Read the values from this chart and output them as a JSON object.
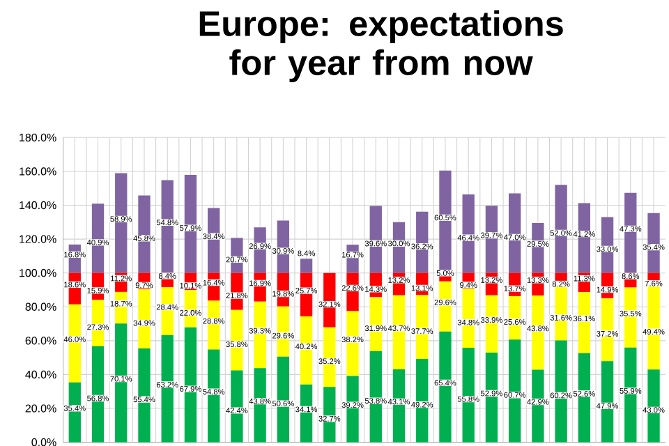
{
  "chart_data": {
    "type": "bar",
    "stacked": true,
    "title": "Europe: expectations for year from now",
    "categories": [
      null,
      null,
      null,
      null,
      null,
      null,
      null,
      null,
      null,
      null,
      null,
      null,
      null,
      null,
      null,
      null,
      null,
      null,
      null,
      null,
      null,
      null,
      null,
      null,
      null,
      null
    ],
    "series": [
      {
        "color": "#00b050",
        "values": [
          35.4,
          56.8,
          70.1,
          55.4,
          63.2,
          67.9,
          54.8,
          42.4,
          43.8,
          50.6,
          34.1,
          32.7,
          39.2,
          53.8,
          43.1,
          49.2,
          65.4,
          55.8,
          52.9,
          60.7,
          42.9,
          60.2,
          52.6,
          47.9,
          55.9,
          43.0
        ],
        "value_labels": [
          "35.4%",
          "56.8%",
          "70.1%",
          "55.4%",
          "63.2%",
          "67.9%",
          "54.8%",
          "42.4%",
          "43.8%",
          "50.6%",
          "34.1%",
          "32.7%",
          "39.2%",
          "53.8%",
          "43.1%",
          "49.2%",
          "65.4%",
          "55.8%",
          "52.9%",
          "60.7%",
          "42.9%",
          "60.2%",
          "52.6%",
          "47.9%",
          "55.9%",
          "43.0%"
        ]
      },
      {
        "color": "#ffff00",
        "values": [
          46.0,
          27.3,
          18.7,
          34.9,
          28.4,
          22.0,
          28.8,
          35.8,
          39.3,
          29.6,
          40.2,
          35.2,
          38.2,
          31.9,
          43.7,
          37.7,
          29.6,
          34.8,
          33.9,
          25.6,
          43.8,
          31.6,
          36.1,
          37.2,
          35.5,
          49.4
        ],
        "value_labels": [
          "46.0%",
          "27.3%",
          "18.7%",
          "34.9%",
          "28.4%",
          "22.0%",
          "28.8%",
          "35.8%",
          "39.3%",
          "29.6%",
          "40.2%",
          "35.2%",
          "38.2%",
          "31.9%",
          "43.7%",
          "37.7%",
          "29.6%",
          "34.8%",
          "33.9%",
          "25.6%",
          "43.8%",
          "31.6%",
          "36.1%",
          "37.2%",
          "35.5%",
          "49.4%"
        ]
      },
      {
        "color": "#ff0000",
        "values": [
          18.6,
          15.9,
          11.2,
          9.7,
          8.4,
          10.1,
          16.4,
          21.8,
          16.9,
          19.8,
          25.7,
          32.1,
          22.6,
          14.3,
          13.2,
          13.1,
          5.0,
          9.4,
          13.2,
          13.7,
          13.3,
          8.2,
          11.3,
          14.9,
          8.6,
          7.6
        ],
        "value_labels": [
          "18.6%",
          "15.9%",
          "11.2%",
          "9.7%",
          "8.4%",
          "10.1%",
          "16.4%",
          "21.8%",
          "16.9%",
          "19.8%",
          "25.7%",
          "32.1%",
          "22.6%",
          "14.3%",
          "13.2%",
          "13.1%",
          "5.0%",
          "9.4%",
          "13.2%",
          "13.7%",
          "13.3%",
          "8.2%",
          "11.3%",
          "14.9%",
          "8.6%",
          "7.6%"
        ]
      },
      {
        "color": "#8064a2",
        "values": [
          16.8,
          40.9,
          58.9,
          45.8,
          54.8,
          57.9,
          38.4,
          20.7,
          26.9,
          30.9,
          8.4,
          null,
          16.7,
          39.6,
          30.0,
          36.2,
          60.5,
          46.4,
          39.7,
          47.0,
          29.5,
          52.0,
          41.2,
          33.0,
          47.3,
          35.4
        ],
        "value_labels": [
          "16.8%",
          "40.9%",
          "58.9%",
          "45.8%",
          "54.8%",
          "57.9%",
          "38.4%",
          "20.7%",
          "26.9%",
          "30.9%",
          "8.4%",
          null,
          "16.7%",
          "39.6%",
          "30.0%",
          "36.2%",
          "60.5%",
          "46.4%",
          "39.7%",
          "47.0%",
          "29.5%",
          "52.0%",
          "41.2%",
          "33.0%",
          "47.3%",
          "35.4%"
        ]
      }
    ],
    "ylim": [
      0,
      180
    ],
    "yticks": [
      {
        "value": 0,
        "label": "0.0%"
      },
      {
        "value": 20,
        "label": "20.0%"
      },
      {
        "value": 40,
        "label": "40.0%"
      },
      {
        "value": 60,
        "label": "60.0%"
      },
      {
        "value": 80,
        "label": "80.0%"
      },
      {
        "value": 100,
        "label": "100.0%"
      },
      {
        "value": 120,
        "label": "120.0%"
      },
      {
        "value": 140,
        "label": "140.0%"
      },
      {
        "value": 160,
        "label": "160.0%"
      },
      {
        "value": 180,
        "label": "180.0%"
      }
    ],
    "grid": true,
    "tick_labels": "y"
  }
}
